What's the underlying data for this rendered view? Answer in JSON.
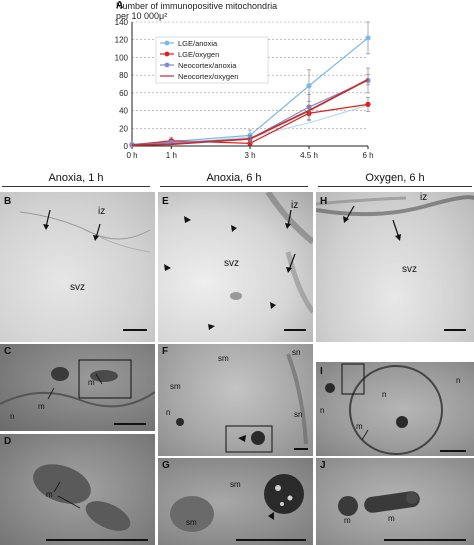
{
  "figure": {
    "chart_title_line1": "Number of immunopositive mitochondria",
    "chart_title_line2": "per 10 000μ²",
    "panel_letters": [
      "A",
      "B",
      "C",
      "D",
      "E",
      "F",
      "G",
      "H",
      "I",
      "J"
    ],
    "column_headers": [
      "Anoxia, 1 h",
      "Anoxia, 6 h",
      "Oxygen, 6 h"
    ],
    "labels": {
      "B": {
        "iz": "iz",
        "svz": "svz"
      },
      "C": {
        "m1": "m",
        "m2": "m",
        "n": "n"
      },
      "D": {
        "m": "m"
      },
      "E": {
        "iz": "iz",
        "svz": "svz"
      },
      "F": {
        "sm1": "sm",
        "sn1": "sn",
        "sm2": "sm",
        "sn2": "sn",
        "n": "n"
      },
      "G": {
        "sm1": "sm",
        "sm2": "sm"
      },
      "H": {
        "iz": "iz",
        "svz": "svz"
      },
      "I": {
        "n1": "n",
        "n2": "n",
        "n3": "n",
        "m": "m"
      },
      "J": {
        "m1": "m",
        "m2": "m"
      }
    }
  },
  "chart_data": {
    "type": "line",
    "title": "Number of immunopositive mitochondria per 10 000μ²",
    "categories": [
      "0 h",
      "1 h",
      "3 h",
      "4.5 h",
      "6 h"
    ],
    "x": [
      0,
      1,
      3,
      4.5,
      6
    ],
    "ylim": [
      0,
      140
    ],
    "yticks": [
      0,
      20,
      40,
      60,
      80,
      100,
      120,
      140
    ],
    "grid": true,
    "legend_position": "top-left",
    "series": [
      {
        "name": "LGE/anoxia",
        "color": "#7ab8e8",
        "marker": "circle",
        "values": [
          2,
          5,
          12,
          68,
          122
        ],
        "errors": [
          1,
          3,
          6,
          18,
          18
        ]
      },
      {
        "name": "LGE/oxygen",
        "color": "#e02020",
        "marker": "circle",
        "values": [
          1,
          6,
          3,
          37,
          47
        ],
        "errors": [
          1,
          4,
          2,
          8,
          8
        ]
      },
      {
        "name": "Neocortex/anoxia",
        "color": "#8888cc",
        "marker": "circle",
        "values": [
          1,
          4,
          8,
          44,
          74
        ],
        "errors": [
          1,
          2,
          4,
          14,
          14
        ]
      },
      {
        "name": "Neocortex/oxygen",
        "color": "#c03030",
        "marker": "none",
        "values": [
          1,
          2,
          8,
          40,
          75
        ],
        "errors": [
          0,
          0,
          2,
          6,
          6
        ]
      }
    ],
    "extra_lines": [
      {
        "color": "#b8dcf5",
        "values": [
          1,
          3,
          10,
          26,
          46
        ]
      }
    ]
  }
}
